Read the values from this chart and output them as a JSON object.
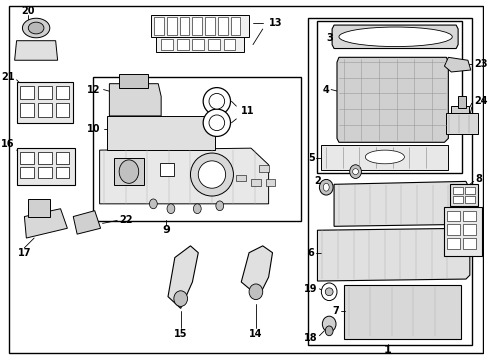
{
  "background_color": "#ffffff",
  "fig_width": 4.89,
  "fig_height": 3.6,
  "dpi": 100,
  "image_data": null
}
